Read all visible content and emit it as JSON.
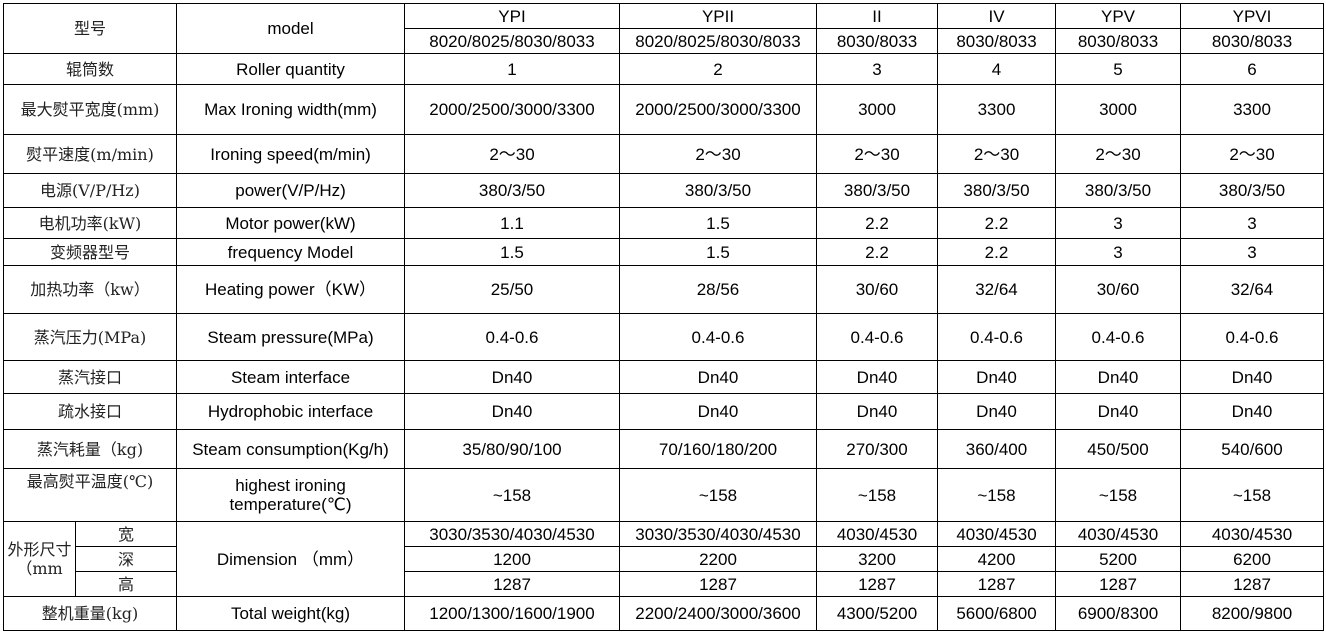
{
  "header": {
    "cn": "型号",
    "en": "model",
    "models": [
      "YPI",
      "YPII",
      "II",
      "IV",
      "YPV",
      "YPVI"
    ],
    "sub_models": [
      "8020/8025/8030/8033",
      "8020/8025/8030/8033",
      "8030/8033",
      "8030/8033",
      "8030/8033",
      "8030/8033"
    ]
  },
  "rows": [
    {
      "cn": "辊筒数",
      "en": "Roller quantity",
      "values": [
        "1",
        "2",
        "3",
        "4",
        "5",
        "6"
      ]
    },
    {
      "cn": "最大熨平宽度(mm)",
      "en": "Max Ironing width(mm)",
      "values": [
        "2000/2500/3000/3300",
        "2000/2500/3000/3300",
        "3000",
        "3300",
        "3000",
        "3300"
      ]
    },
    {
      "cn": "熨平速度(m/min)",
      "en": "Ironing speed(m/min)",
      "values": [
        "2～30",
        "2～30",
        "2～30",
        "2～30",
        "2～30",
        "2～30"
      ]
    },
    {
      "cn": "电源(V/P/Hz)",
      "en": "power(V/P/Hz)",
      "values": [
        "380/3/50",
        "380/3/50",
        "380/3/50",
        "380/3/50",
        "380/3/50",
        "380/3/50"
      ]
    },
    {
      "cn": "电机功率(kW)",
      "en": "Motor power(kW)",
      "values": [
        "1.1",
        "1.5",
        "2.2",
        "2.2",
        "3",
        "3"
      ]
    },
    {
      "cn": "变频器型号",
      "en": "frequency Model",
      "values": [
        "1.5",
        "1.5",
        "2.2",
        "2.2",
        "3",
        "3"
      ]
    },
    {
      "cn": "加热功率（kw）",
      "en": "Heating power（KW）",
      "values": [
        "25/50",
        "28/56",
        "30/60",
        "32/64",
        "30/60",
        "32/64"
      ]
    },
    {
      "cn": "蒸汽压力(MPa)",
      "en": "Steam pressure(MPa)",
      "values": [
        "0.4-0.6",
        "0.4-0.6",
        "0.4-0.6",
        "0.4-0.6",
        "0.4-0.6",
        "0.4-0.6"
      ]
    },
    {
      "cn": "蒸汽接口",
      "en": "Steam interface",
      "values": [
        "Dn40",
        "Dn40",
        "Dn40",
        "Dn40",
        "Dn40",
        "Dn40"
      ]
    },
    {
      "cn": "疏水接口",
      "en": "Hydrophobic interface",
      "values": [
        "Dn40",
        "Dn40",
        "Dn40",
        "Dn40",
        "Dn40",
        "Dn40"
      ]
    },
    {
      "cn": "蒸汽耗量（kg)",
      "en": "Steam consumption(Kg/h)",
      "values": [
        "35/80/90/100",
        "70/160/180/200",
        "270/300",
        "360/400",
        "450/500",
        "540/600"
      ]
    },
    {
      "cn": "最高熨平温度(℃)",
      "en": "highest ironing temperature(℃)",
      "values": [
        "~158",
        "~158",
        "~158",
        "~158",
        "~158",
        "~158"
      ]
    }
  ],
  "dimension": {
    "cn": "外形尺寸（mm",
    "en": "Dimension （mm）",
    "subrows": [
      {
        "cn": "宽",
        "values": [
          "3030/3530/4030/4530",
          "3030/3530/4030/4530",
          "4030/4530",
          "4030/4530",
          "4030/4530",
          "4030/4530"
        ]
      },
      {
        "cn": "深",
        "values": [
          "1200",
          "2200",
          "3200",
          "4200",
          "5200",
          "6200"
        ]
      },
      {
        "cn": "高",
        "values": [
          "1287",
          "1287",
          "1287",
          "1287",
          "1287",
          "1287"
        ]
      }
    ]
  },
  "weight": {
    "cn": "整机重量(kg)",
    "en": "Total weight(kg)",
    "values": [
      "1200/1300/1600/1900",
      "2200/2400/3000/3600",
      "4300/5200",
      "5600/6800",
      "6900/8300",
      "8200/9800"
    ]
  }
}
